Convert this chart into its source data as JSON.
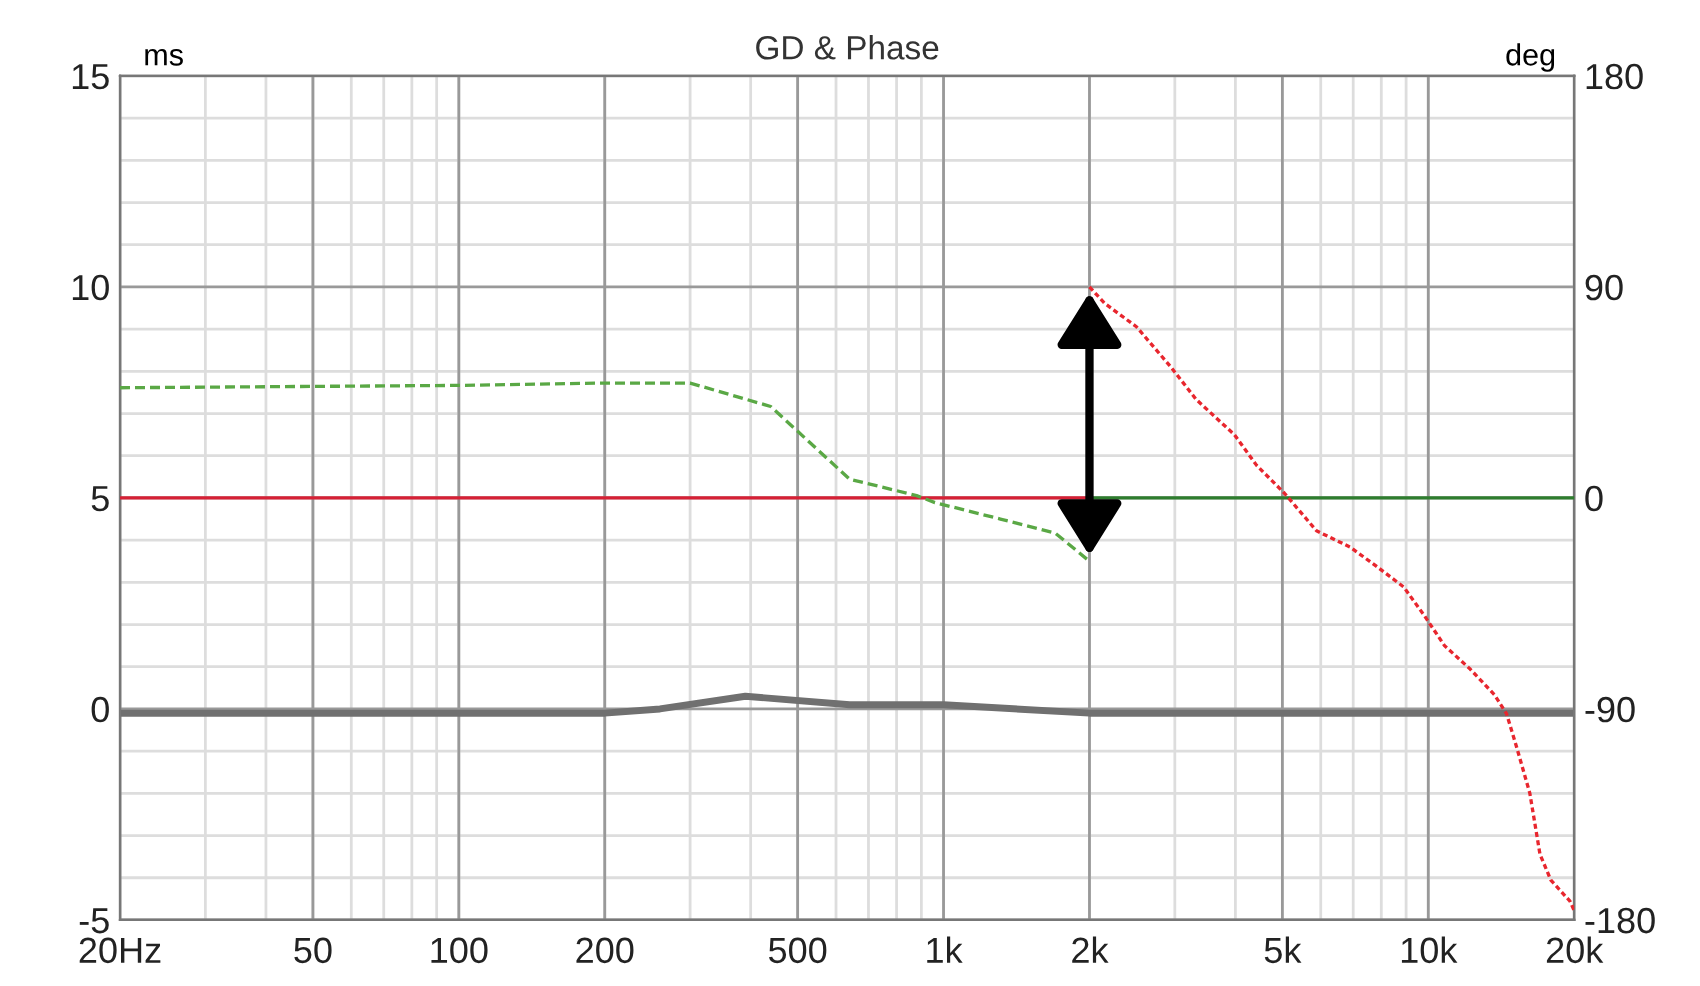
{
  "chart_data": {
    "type": "line",
    "title": "GD & Phase",
    "ylabel": "ms",
    "y2label": "deg",
    "log": "x",
    "grid": true,
    "marker": "none",
    "xlim": [
      20,
      20000
    ],
    "xticks": [
      {
        "value": 20,
        "label": "20Hz"
      },
      50,
      100,
      200,
      500,
      {
        "value": 1000,
        "label": "1k"
      },
      {
        "value": 2000,
        "label": "2k"
      },
      {
        "value": 5000,
        "label": "5k"
      },
      {
        "value": 10000,
        "label": "10k"
      },
      {
        "value": 20000,
        "label": "20k"
      }
    ],
    "ylim": [
      -5,
      15
    ],
    "yticks": [
      -5,
      0,
      5,
      10,
      15
    ],
    "y2lim": [
      -180,
      180
    ],
    "y2ticks": [
      -180,
      -90,
      0,
      90,
      180
    ],
    "series": [
      {
        "color": "#d62035",
        "line_style": "solid",
        "axis": "y2",
        "x": [
          20,
          2000
        ],
        "values": [
          0,
          0
        ]
      },
      {
        "color": "#2e7d2e",
        "line_style": "solid",
        "axis": "y2",
        "x": [
          2000,
          20000
        ],
        "values": [
          0,
          0
        ]
      },
      {
        "color": "#5aa845",
        "line_style": "dashed",
        "axis": "y2",
        "x": [
          20,
          100,
          200,
          300,
          440,
          640,
          880,
          960,
          1310,
          1700,
          2000
        ],
        "values": [
          47,
          48,
          49,
          49,
          39,
          8,
          1,
          -2,
          -9,
          -15,
          -27
        ]
      },
      {
        "color": "#e8262e",
        "line_style": "dotted",
        "axis": "y2",
        "x": [
          2000,
          2150,
          2500,
          2940,
          3320,
          3980,
          4420,
          5050,
          5880,
          6900,
          7800,
          8900,
          9800,
          10800,
          12200,
          13700,
          14500,
          15200,
          16200,
          17000,
          17900,
          19600,
          20000
        ],
        "values": [
          90,
          83,
          73,
          56,
          42,
          27,
          14,
          2,
          -14,
          -21,
          -29,
          -38,
          -50,
          -63,
          -73,
          -84,
          -92,
          -106,
          -126,
          -152,
          -163,
          -172,
          -176
        ]
      },
      {
        "color": "#707070",
        "line_style": "solid",
        "axis": "y",
        "x": [
          20,
          200,
          260,
          390,
          640,
          1000,
          2000,
          5000,
          20000
        ],
        "values": [
          -0.1,
          -0.1,
          0.0,
          0.3,
          0.1,
          0.1,
          -0.1,
          -0.1,
          -0.1
        ]
      }
    ]
  }
}
